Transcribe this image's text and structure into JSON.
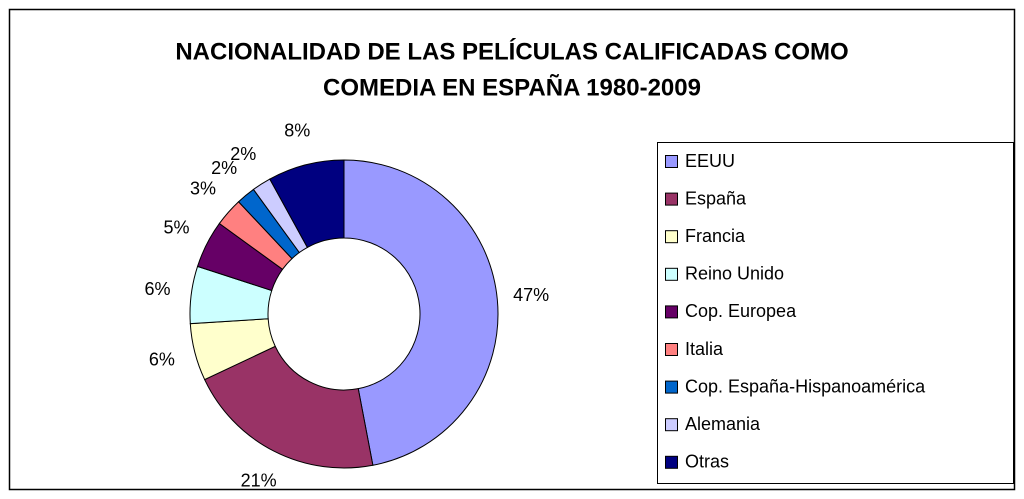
{
  "chart_data": {
    "type": "donut",
    "title": [
      "NACIONALIDAD DE LAS PELÍCULAS CALIFICADAS COMO",
      "COMEDIA EN ESPAÑA 1980-2009"
    ],
    "categories": [
      "EEUU",
      "España",
      "Francia",
      "Reino Unido",
      "Cop. Europea",
      "Italia",
      "Cop. España-Hispanoamérica",
      "Alemania",
      "Otras"
    ],
    "values": [
      47,
      21,
      6,
      6,
      5,
      3,
      2,
      2,
      8
    ],
    "value_labels": [
      "47%",
      "21%",
      "6%",
      "6%",
      "5%",
      "3%",
      "2%",
      "2%",
      "8%"
    ],
    "colors": [
      "#9999ff",
      "#993366",
      "#ffffcc",
      "#ccffff",
      "#660066",
      "#ff8080",
      "#0066cc",
      "#ccccff",
      "#000080"
    ],
    "legend": "right"
  }
}
